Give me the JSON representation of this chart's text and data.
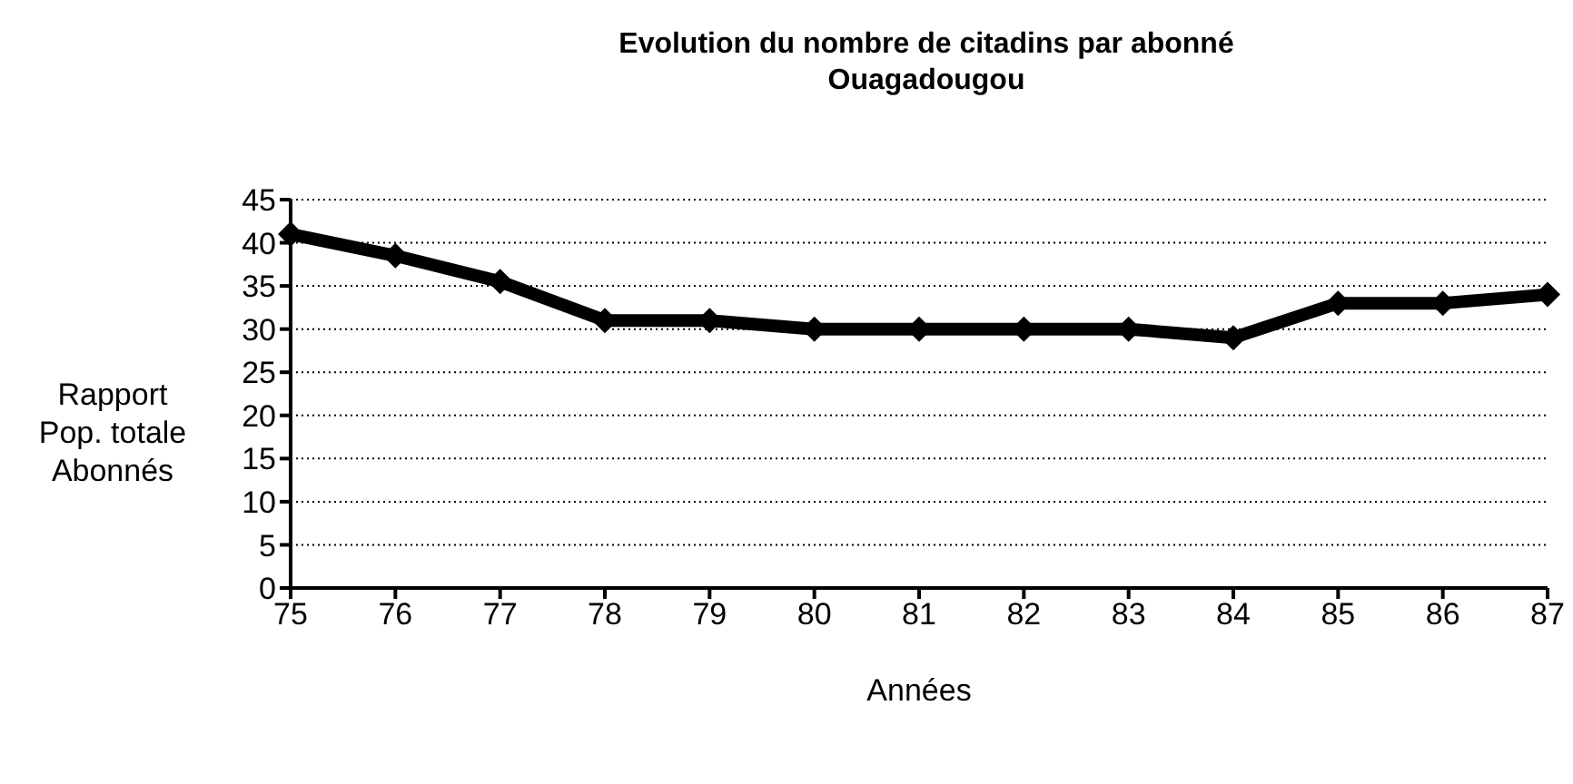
{
  "chart_data": {
    "type": "line",
    "title": "Evolution du nombre de citadins par abonné\nOuagadougou",
    "xlabel": "Années",
    "ylabel": "Rapport\nPop. totale\nAbonnés",
    "categories": [
      "75",
      "76",
      "77",
      "78",
      "79",
      "80",
      "81",
      "82",
      "83",
      "84",
      "85",
      "86",
      "87"
    ],
    "series": [
      {
        "color": "#000000",
        "values": [
          41,
          38.5,
          35.5,
          31,
          31,
          30,
          30,
          30,
          30,
          29,
          33,
          33,
          34
        ]
      }
    ],
    "ylim": [
      0,
      45
    ],
    "yticks": [
      0,
      5,
      10,
      15,
      20,
      25,
      30,
      35,
      40,
      45
    ],
    "grid": "y",
    "marker": "diamond",
    "line_style": "solid",
    "legend": false
  }
}
